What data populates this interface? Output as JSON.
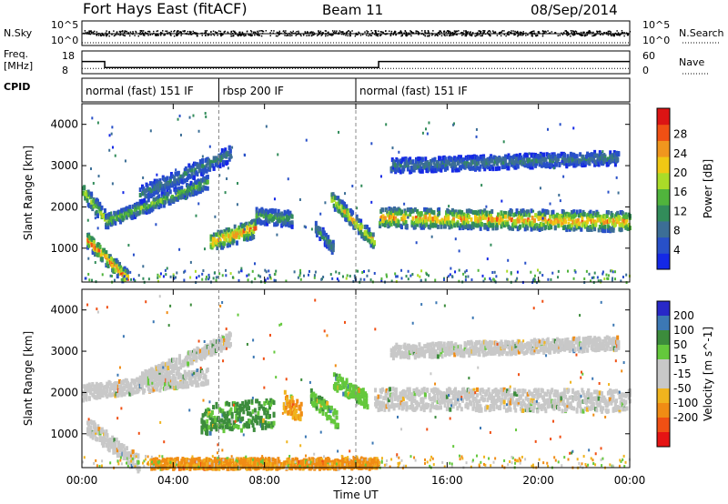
{
  "header": {
    "station": "Fort Hays East (fitACF)",
    "beam": "Beam 11",
    "date": "08/Sep/2014"
  },
  "side_labels": {
    "nsky": "N.Sky",
    "freq_1": "Freq.",
    "freq_2": "[MHz]",
    "cpid": "CPID",
    "nsearch": "N.Search",
    "nave": "Nave"
  },
  "strip_ticks": {
    "noise_left": [
      "10^5",
      "10^0"
    ],
    "noise_right": [
      "10^5",
      "10^0"
    ],
    "freq_left": [
      "18",
      "8"
    ],
    "nave_right": [
      "60",
      "0"
    ]
  },
  "cpid_segments": [
    {
      "label": "normal (fast) 151 IF",
      "start": 0,
      "end": 6
    },
    {
      "label": "rbsp 200 IF",
      "start": 6,
      "end": 12
    },
    {
      "label": "normal (fast) 151 IF",
      "start": 12,
      "end": 24
    }
  ],
  "x_axis": {
    "label": "Time UT",
    "ticks": [
      "00:00",
      "04:00",
      "08:00",
      "12:00",
      "16:00",
      "20:00",
      "00:00"
    ]
  },
  "colors": {
    "power": [
      "#1428e6",
      "#2850c8",
      "#3c6e96",
      "#328c5a",
      "#50b43c",
      "#aadc28",
      "#f0c814",
      "#f0961e",
      "#f05014",
      "#dc1414"
    ],
    "velocity": [
      "#2828c8",
      "#3c78b4",
      "#3c8c3c",
      "#64c83c",
      "#c8c8c8",
      "#c8c8c8",
      "#f0b41e",
      "#f08c14",
      "#f05014",
      "#e61414"
    ]
  },
  "chart_data": [
    {
      "type": "heatmap",
      "name_key": "power",
      "xlabel": "Time UT",
      "ylabel": "Slant Range [km]",
      "xlim": [
        0,
        24
      ],
      "ylim": [
        180,
        4500
      ],
      "yticks": [
        1000,
        2000,
        3000,
        4000
      ],
      "colorbar": {
        "label": "Power [dB]",
        "ticks": [
          "4",
          "8",
          "12",
          "16",
          "20",
          "24",
          "28"
        ],
        "range": [
          0,
          30
        ]
      },
      "features": [
        {
          "desc": "diagonal echo band",
          "t_start": 0.2,
          "t_end": 2.0,
          "range_start": 1200,
          "range_end": 250,
          "width": 180,
          "peak_db": 27
        },
        {
          "desc": "early band",
          "t_start": 0.0,
          "t_end": 1.0,
          "range_start": 2400,
          "range_end": 1700,
          "width": 200,
          "peak_db": 18
        },
        {
          "desc": "rising band",
          "t_start": 1.0,
          "t_end": 5.5,
          "range_start": 1650,
          "range_end": 2600,
          "width": 150,
          "peak_db": 16
        },
        {
          "desc": "arc to 3000 km",
          "t_start": 2.5,
          "t_end": 6.5,
          "range_start": 2300,
          "range_end": 3300,
          "width": 180,
          "peak_db": 10
        },
        {
          "desc": "patch near 7 UT",
          "t_start": 5.6,
          "t_end": 7.6,
          "range_start": 1150,
          "range_end": 1500,
          "width": 220,
          "peak_db": 25
        },
        {
          "desc": "patch 8-9 UT",
          "t_start": 7.6,
          "t_end": 9.2,
          "range_start": 1800,
          "range_end": 1700,
          "width": 180,
          "peak_db": 14
        },
        {
          "desc": "patch near 10.5 UT",
          "t_start": 10.2,
          "t_end": 11.0,
          "range_start": 1500,
          "range_end": 1000,
          "width": 160,
          "peak_db": 12
        },
        {
          "desc": "descending band",
          "t_start": 10.9,
          "t_end": 12.8,
          "range_start": 2200,
          "range_end": 1150,
          "width": 180,
          "peak_db": 22
        },
        {
          "desc": "main band",
          "t_start": 13.0,
          "t_end": 24.0,
          "range_start": 1750,
          "range_end": 1650,
          "width": 230,
          "peak_db": 24
        },
        {
          "desc": "upper arc",
          "t_start": 13.5,
          "t_end": 23.5,
          "range_start": 3000,
          "range_end": 3200,
          "width": 160,
          "peak_db": 10
        }
      ]
    },
    {
      "type": "heatmap",
      "name_key": "velocity",
      "xlabel": "Time UT",
      "ylabel": "Slant Range [km]",
      "xlim": [
        0,
        24
      ],
      "ylim": [
        180,
        4500
      ],
      "yticks": [
        1000,
        2000,
        3000,
        4000
      ],
      "colorbar": {
        "label": "Velocity [m s^-1]",
        "ticks": [
          "200",
          "100",
          "50",
          "15",
          "-15",
          "-50",
          "-100",
          "-200"
        ],
        "range": [
          -250,
          250
        ]
      },
      "features": [
        {
          "desc": "diagonal band",
          "t_start": 0.2,
          "t_end": 2.5,
          "range_start": 1200,
          "range_end": 250,
          "width": 200,
          "velocity": 0
        },
        {
          "desc": "rising band",
          "t_start": 0.0,
          "t_end": 5.5,
          "range_start": 2000,
          "range_end": 2400,
          "width": 180,
          "velocity": 0
        },
        {
          "desc": "arc",
          "t_start": 2.5,
          "t_end": 6.5,
          "range_start": 2300,
          "range_end": 3300,
          "width": 160,
          "velocity": 0
        },
        {
          "desc": "green patch",
          "t_start": 5.2,
          "t_end": 8.4,
          "range_start": 1350,
          "range_end": 1500,
          "width": 350,
          "velocity": 60
        },
        {
          "desc": "orange patch",
          "t_start": 8.8,
          "t_end": 9.6,
          "range_start": 1800,
          "range_end": 1500,
          "width": 250,
          "velocity": -45
        },
        {
          "desc": "green patch 2",
          "t_start": 10.0,
          "t_end": 11.2,
          "range_start": 1900,
          "range_end": 1300,
          "width": 200,
          "velocity": 40
        },
        {
          "desc": "green patch 3",
          "t_start": 11.0,
          "t_end": 12.5,
          "range_start": 2300,
          "range_end": 1800,
          "width": 200,
          "velocity": 30
        },
        {
          "desc": "gray main band",
          "t_start": 12.8,
          "t_end": 24.0,
          "range_start": 1850,
          "range_end": 1800,
          "width": 260,
          "velocity": 0
        },
        {
          "desc": "upper arc",
          "t_start": 13.5,
          "t_end": 23.5,
          "range_start": 3000,
          "range_end": 3200,
          "width": 160,
          "velocity": 0
        },
        {
          "desc": "low orange",
          "t_start": 3.0,
          "t_end": 13.0,
          "range_start": 280,
          "range_end": 280,
          "width": 120,
          "velocity": -60
        }
      ]
    }
  ]
}
